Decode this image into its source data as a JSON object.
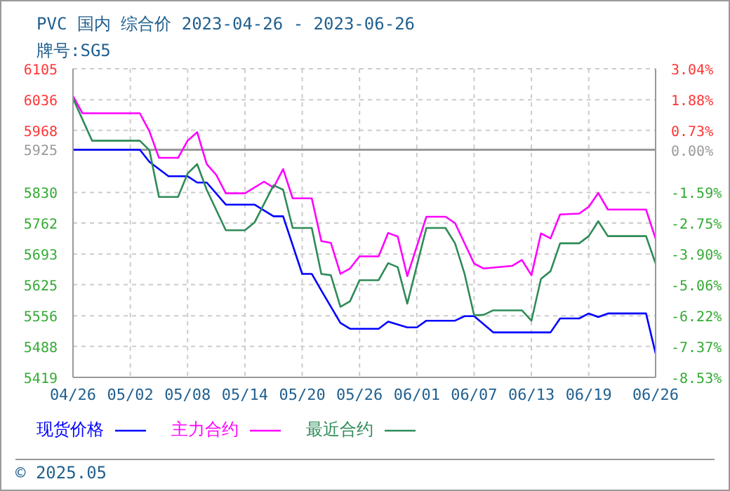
{
  "chart_data": {
    "type": "line",
    "title": "PVC 国内 综合价 2023-04-26 - 2023-06-26",
    "subtitle": "牌号:SG5",
    "xlim": [
      "2023-04-26",
      "2023-06-26"
    ],
    "xticks": [
      {
        "value": "2023-04-26",
        "label": "04/26"
      },
      {
        "value": "2023-05-02",
        "label": "05/02"
      },
      {
        "value": "2023-05-08",
        "label": "05/08"
      },
      {
        "value": "2023-05-14",
        "label": "05/14"
      },
      {
        "value": "2023-05-20",
        "label": "05/20"
      },
      {
        "value": "2023-05-26",
        "label": "05/26"
      },
      {
        "value": "2023-06-01",
        "label": "06/01"
      },
      {
        "value": "2023-06-07",
        "label": "06/07"
      },
      {
        "value": "2023-06-13",
        "label": "06/13"
      },
      {
        "value": "2023-06-19",
        "label": "06/19"
      },
      {
        "value": "2023-06-26",
        "label": "06/26"
      }
    ],
    "ylim": [
      5419,
      6105
    ],
    "yticks": [
      5419,
      5488,
      5556,
      5625,
      5693,
      5762,
      5830,
      5925,
      5968,
      6036,
      6105
    ],
    "y2lim": [
      -8.53,
      3.04
    ],
    "y2ticks": [
      {
        "value": -8.53,
        "label": "-8.53%"
      },
      {
        "value": -7.37,
        "label": "-7.37%"
      },
      {
        "value": -6.22,
        "label": "-6.22%"
      },
      {
        "value": -5.06,
        "label": "-5.06%"
      },
      {
        "value": -3.9,
        "label": "-3.90%"
      },
      {
        "value": -2.75,
        "label": "-2.75%"
      },
      {
        "value": -1.59,
        "label": "-1.59%"
      },
      {
        "value": 0,
        "label": "0.00%"
      },
      {
        "value": 0.73,
        "label": "0.73%"
      },
      {
        "value": 1.88,
        "label": "1.88%"
      },
      {
        "value": 3.04,
        "label": "3.04%"
      }
    ],
    "ref_lines": [
      {
        "axis": "y",
        "value": 5925,
        "color": "#999999",
        "line_style": "solid"
      }
    ],
    "grid": true,
    "legend": "bottom",
    "marker": "none",
    "line_style": "solid",
    "annotations": [
      "© 2025.05"
    ],
    "series": [
      {
        "name": "现货价格",
        "color": "#0000ff",
        "x": [
          "2023-04-26",
          "2023-05-03",
          "2023-05-04",
          "2023-05-06",
          "2023-05-08",
          "2023-05-09",
          "2023-05-10",
          "2023-05-12",
          "2023-05-15",
          "2023-05-17",
          "2023-05-18",
          "2023-05-20",
          "2023-05-21",
          "2023-05-22",
          "2023-05-24",
          "2023-05-25",
          "2023-05-28",
          "2023-05-29",
          "2023-05-31",
          "2023-06-01",
          "2023-06-02",
          "2023-06-05",
          "2023-06-06",
          "2023-06-07",
          "2023-06-09",
          "2023-06-15",
          "2023-06-16",
          "2023-06-18",
          "2023-06-19",
          "2023-06-20",
          "2023-06-21",
          "2023-06-25",
          "2023-06-26"
        ],
        "values": [
          5925,
          5925,
          5898,
          5866,
          5866,
          5852,
          5852,
          5803,
          5803,
          5777,
          5777,
          5649,
          5649,
          5612,
          5540,
          5527,
          5527,
          5543,
          5530,
          5530,
          5545,
          5545,
          5555,
          5555,
          5519,
          5519,
          5550,
          5550,
          5561,
          5553,
          5561,
          5561,
          5472
        ]
      },
      {
        "name": "主力合约",
        "color": "#ff00ff",
        "x": [
          "2023-04-26",
          "2023-04-27",
          "2023-05-03",
          "2023-05-04",
          "2023-05-05",
          "2023-05-07",
          "2023-05-08",
          "2023-05-09",
          "2023-05-10",
          "2023-05-11",
          "2023-05-12",
          "2023-05-14",
          "2023-05-16",
          "2023-05-17",
          "2023-05-18",
          "2023-05-19",
          "2023-05-21",
          "2023-05-22",
          "2023-05-23",
          "2023-05-24",
          "2023-05-25",
          "2023-05-26",
          "2023-05-28",
          "2023-05-29",
          "2023-05-30",
          "2023-05-31",
          "2023-06-02",
          "2023-06-04",
          "2023-06-05",
          "2023-06-07",
          "2023-06-08",
          "2023-06-11",
          "2023-06-12",
          "2023-06-13",
          "2023-06-14",
          "2023-06-15",
          "2023-06-16",
          "2023-06-18",
          "2023-06-19",
          "2023-06-20",
          "2023-06-21",
          "2023-06-25",
          "2023-06-26"
        ],
        "values": [
          6044,
          6006,
          6006,
          5966,
          5907,
          5907,
          5945,
          5964,
          5893,
          5869,
          5828,
          5828,
          5854,
          5841,
          5882,
          5817,
          5817,
          5722,
          5718,
          5649,
          5661,
          5688,
          5688,
          5740,
          5732,
          5644,
          5776,
          5776,
          5762,
          5672,
          5661,
          5667,
          5680,
          5646,
          5739,
          5728,
          5781,
          5783,
          5798,
          5829,
          5792,
          5792,
          5727
        ]
      },
      {
        "name": "最近合约",
        "color": "#2e8b57",
        "x": [
          "2023-04-26",
          "2023-04-28",
          "2023-05-03",
          "2023-05-04",
          "2023-05-05",
          "2023-05-07",
          "2023-05-08",
          "2023-05-09",
          "2023-05-10",
          "2023-05-12",
          "2023-05-14",
          "2023-05-15",
          "2023-05-17",
          "2023-05-18",
          "2023-05-19",
          "2023-05-21",
          "2023-05-22",
          "2023-05-23",
          "2023-05-24",
          "2023-05-25",
          "2023-05-26",
          "2023-05-28",
          "2023-05-29",
          "2023-05-30",
          "2023-05-31",
          "2023-06-02",
          "2023-06-04",
          "2023-06-05",
          "2023-06-06",
          "2023-06-07",
          "2023-06-08",
          "2023-06-09",
          "2023-06-12",
          "2023-06-13",
          "2023-06-14",
          "2023-06-15",
          "2023-06-16",
          "2023-06-18",
          "2023-06-19",
          "2023-06-20",
          "2023-06-21",
          "2023-06-25",
          "2023-06-26"
        ],
        "values": [
          6039,
          5945,
          5945,
          5924,
          5820,
          5820,
          5872,
          5893,
          5836,
          5746,
          5746,
          5763,
          5846,
          5836,
          5751,
          5751,
          5649,
          5646,
          5576,
          5588,
          5635,
          5635,
          5673,
          5664,
          5583,
          5751,
          5751,
          5717,
          5649,
          5557,
          5558,
          5568,
          5568,
          5545,
          5638,
          5655,
          5717,
          5717,
          5733,
          5766,
          5733,
          5733,
          5672
        ]
      }
    ]
  }
}
